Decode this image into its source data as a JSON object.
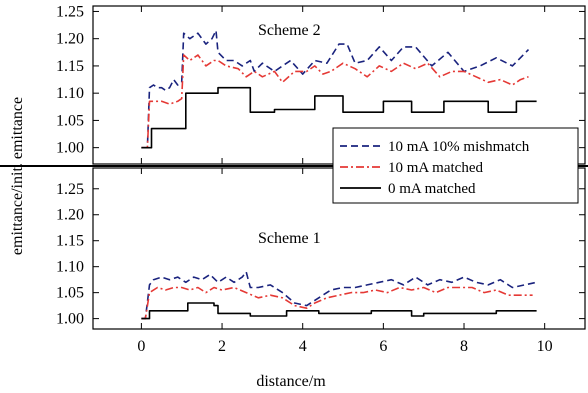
{
  "chart_data": [
    {
      "type": "line",
      "panel": "top",
      "annotation": "Scheme 2",
      "xlabel": "distance/m",
      "ylabel": "emittance/init. emittance",
      "xlim": [
        -1.2,
        11.0
      ],
      "ylim": [
        0.97,
        1.26
      ],
      "yticks": [
        "1.00",
        "1.05",
        "1.10",
        "1.15",
        "1.20",
        "1.25"
      ],
      "ytick_values": [
        1.0,
        1.05,
        1.1,
        1.15,
        1.2,
        1.25
      ],
      "grid": false,
      "legend": {
        "placement": "lower-right",
        "entries": [
          "10 mA 10% mishmatch",
          "10 mA matched",
          "0 mA matched"
        ]
      },
      "series": [
        {
          "name": "10 mA 10% mishmatch",
          "color": "#1a237e",
          "style": "dashed",
          "x": [
            0,
            0.15,
            0.2,
            0.3,
            0.4,
            0.5,
            0.6,
            0.7,
            0.8,
            0.9,
            1.0,
            1.05,
            1.2,
            1.4,
            1.6,
            1.75,
            1.85,
            1.9,
            2.1,
            2.3,
            2.5,
            2.7,
            2.8,
            3.0,
            3.3,
            3.5,
            3.7,
            4.0,
            4.3,
            4.6,
            4.9,
            5.1,
            5.3,
            5.6,
            5.9,
            6.2,
            6.5,
            6.8,
            7.2,
            7.6,
            8.0,
            8.4,
            8.8,
            9.2,
            9.6
          ],
          "y": [
            1.0,
            1.0,
            1.11,
            1.115,
            1.11,
            1.11,
            1.105,
            1.11,
            1.125,
            1.115,
            1.12,
            1.21,
            1.2,
            1.21,
            1.19,
            1.2,
            1.215,
            1.175,
            1.16,
            1.16,
            1.15,
            1.16,
            1.14,
            1.155,
            1.14,
            1.15,
            1.16,
            1.135,
            1.16,
            1.155,
            1.19,
            1.19,
            1.155,
            1.16,
            1.185,
            1.16,
            1.185,
            1.185,
            1.15,
            1.175,
            1.14,
            1.15,
            1.165,
            1.15,
            1.18
          ]
        },
        {
          "name": "10 mA matched",
          "color": "#e53935",
          "style": "dash-dot",
          "x": [
            0,
            0.15,
            0.2,
            0.3,
            0.5,
            0.7,
            0.9,
            1.0,
            1.05,
            1.2,
            1.4,
            1.6,
            1.8,
            1.9,
            2.1,
            2.4,
            2.6,
            2.8,
            3.0,
            3.3,
            3.5,
            3.8,
            4.1,
            4.3,
            4.5,
            4.7,
            5.0,
            5.3,
            5.6,
            5.9,
            6.2,
            6.5,
            6.8,
            7.1,
            7.4,
            7.7,
            8.0,
            8.3,
            8.6,
            8.9,
            9.2,
            9.4,
            9.6
          ],
          "y": [
            1.0,
            1.0,
            1.085,
            1.085,
            1.085,
            1.08,
            1.085,
            1.09,
            1.17,
            1.16,
            1.17,
            1.15,
            1.16,
            1.16,
            1.15,
            1.145,
            1.13,
            1.14,
            1.13,
            1.14,
            1.12,
            1.14,
            1.14,
            1.15,
            1.135,
            1.14,
            1.155,
            1.145,
            1.13,
            1.15,
            1.14,
            1.155,
            1.145,
            1.155,
            1.13,
            1.14,
            1.14,
            1.13,
            1.12,
            1.125,
            1.115,
            1.125,
            1.13
          ]
        },
        {
          "name": "0 mA matched",
          "color": "#000000",
          "style": "solid",
          "x": [
            0,
            0.15,
            0.25,
            1.05,
            1.1,
            1.8,
            1.9,
            2.6,
            2.7,
            3.0,
            3.3,
            4.2,
            4.3,
            4.9,
            5.0,
            5.9,
            6.0,
            6.6,
            6.7,
            7.4,
            7.5,
            8.5,
            8.6,
            9.2,
            9.3,
            9.8
          ],
          "y": [
            1.0,
            1.0,
            1.035,
            1.035,
            1.1,
            1.1,
            1.11,
            1.11,
            1.065,
            1.065,
            1.07,
            1.07,
            1.095,
            1.095,
            1.065,
            1.065,
            1.085,
            1.085,
            1.065,
            1.065,
            1.085,
            1.085,
            1.065,
            1.065,
            1.085,
            1.085
          ]
        }
      ]
    },
    {
      "type": "line",
      "panel": "bottom",
      "annotation": "Scheme 1",
      "xlabel": "distance/m",
      "ylabel": "emittance/init. emittance",
      "xlim": [
        -1.2,
        11.0
      ],
      "ylim": [
        0.98,
        1.29
      ],
      "xticks": [
        "0",
        "2",
        "4",
        "6",
        "8",
        "10"
      ],
      "xtick_values": [
        0,
        2,
        4,
        6,
        8,
        10
      ],
      "yticks": [
        "1.00",
        "1.05",
        "1.10",
        "1.15",
        "1.20",
        "1.25"
      ],
      "ytick_values": [
        1.0,
        1.05,
        1.1,
        1.15,
        1.2,
        1.25
      ],
      "grid": false,
      "series": [
        {
          "name": "10 mA 10% mishmatch",
          "color": "#1a237e",
          "style": "dashed",
          "x": [
            0,
            0.1,
            0.2,
            0.3,
            0.5,
            0.7,
            0.9,
            1.1,
            1.3,
            1.5,
            1.7,
            1.9,
            2.1,
            2.3,
            2.5,
            2.6,
            2.7,
            2.9,
            3.2,
            3.5,
            3.8,
            4.1,
            4.4,
            4.7,
            5.0,
            5.3,
            5.6,
            5.9,
            6.2,
            6.5,
            6.8,
            7.1,
            7.4,
            7.7,
            8.0,
            8.3,
            8.6,
            8.9,
            9.2,
            9.5,
            9.8
          ],
          "y": [
            1.0,
            1.0,
            1.065,
            1.075,
            1.08,
            1.075,
            1.08,
            1.07,
            1.08,
            1.075,
            1.085,
            1.07,
            1.08,
            1.07,
            1.08,
            1.09,
            1.06,
            1.06,
            1.065,
            1.05,
            1.03,
            1.025,
            1.04,
            1.055,
            1.06,
            1.06,
            1.065,
            1.07,
            1.075,
            1.065,
            1.08,
            1.065,
            1.075,
            1.07,
            1.08,
            1.07,
            1.065,
            1.075,
            1.06,
            1.065,
            1.07
          ]
        },
        {
          "name": "10 mA matched",
          "color": "#e53935",
          "style": "dash-dot",
          "x": [
            0,
            0.1,
            0.2,
            0.4,
            0.6,
            0.8,
            1.0,
            1.2,
            1.4,
            1.6,
            1.8,
            2.0,
            2.3,
            2.6,
            2.9,
            3.2,
            3.5,
            3.8,
            4.1,
            4.3,
            4.6,
            4.9,
            5.2,
            5.5,
            5.8,
            6.1,
            6.4,
            6.7,
            7.0,
            7.3,
            7.6,
            7.9,
            8.2,
            8.5,
            8.8,
            9.1,
            9.4,
            9.7
          ],
          "y": [
            1.0,
            1.0,
            1.05,
            1.06,
            1.055,
            1.06,
            1.06,
            1.055,
            1.06,
            1.05,
            1.06,
            1.055,
            1.06,
            1.05,
            1.04,
            1.045,
            1.04,
            1.025,
            1.02,
            1.03,
            1.04,
            1.045,
            1.05,
            1.05,
            1.055,
            1.05,
            1.06,
            1.055,
            1.06,
            1.05,
            1.06,
            1.06,
            1.06,
            1.05,
            1.055,
            1.045,
            1.045,
            1.045
          ]
        },
        {
          "name": "0 mA matched",
          "color": "#000000",
          "style": "solid",
          "x": [
            0,
            0.15,
            0.2,
            1.1,
            1.15,
            1.8,
            1.9,
            2.6,
            2.7,
            3.5,
            3.6,
            4.3,
            4.4,
            5.6,
            5.7,
            6.6,
            6.7,
            6.9,
            7.0,
            8.7,
            8.8,
            9.2,
            9.3,
            9.8
          ],
          "y": [
            1.0,
            1.0,
            1.015,
            1.015,
            1.03,
            1.025,
            1.01,
            1.01,
            1.005,
            1.005,
            1.015,
            1.015,
            1.01,
            1.01,
            1.015,
            1.015,
            1.005,
            1.005,
            1.01,
            1.01,
            1.015,
            1.015,
            1.015,
            1.015
          ]
        }
      ]
    }
  ]
}
